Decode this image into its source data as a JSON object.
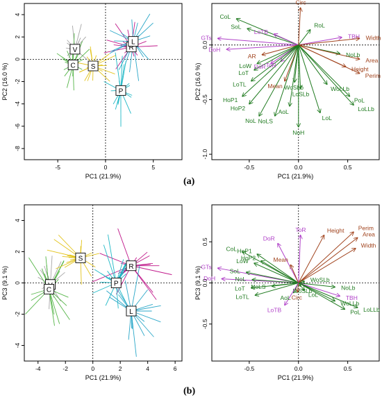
{
  "panel_labels": {
    "a": "(a)",
    "b": "(b)"
  },
  "colors": {
    "V": "#a6a6a6",
    "C": "#55b548",
    "S": "#e3c41c",
    "R": "#c0188a",
    "L": "#2aa7c8",
    "P": "#1fb8c6",
    "shape_arrow": "#1f7a1f",
    "size_arrow": "#a0421c",
    "color_arrow": "#b040c8",
    "shape_label": "#1f7a1f",
    "size_label": "#a0421c",
    "color_label": "#b040c8"
  },
  "chart_data": [
    {
      "type": "scatter",
      "panel": "a-left",
      "xlabel": "PC1 (21.9%)",
      "ylabel": "PC2 (16.0 %)",
      "xlim": [
        -8.5,
        8
      ],
      "ylim": [
        -9,
        5
      ],
      "xticks": [
        -5,
        0,
        5
      ],
      "xtick_labels": [
        "-5",
        "0",
        "5"
      ],
      "yticks": [
        -8,
        -6,
        -4,
        -2,
        0,
        2,
        4
      ],
      "ytick_labels": [
        "-8",
        "-6",
        "-4",
        "-2",
        "0",
        "2",
        "4"
      ],
      "centroids": [
        {
          "label": "V",
          "x": -3.2,
          "y": 0.9
        },
        {
          "label": "C",
          "x": -3.4,
          "y": -0.5
        },
        {
          "label": "S",
          "x": -1.3,
          "y": -0.6
        },
        {
          "label": "R",
          "x": 2.7,
          "y": 1.1
        },
        {
          "label": "L",
          "x": 2.9,
          "y": 1.6
        },
        {
          "label": "P",
          "x": 1.6,
          "y": -2.8
        }
      ]
    },
    {
      "type": "biplot",
      "panel": "a-right",
      "xlabel": "PC1 (21.9%)",
      "ylabel": "PC2 (16.0 %)",
      "xlim": [
        -0.88,
        0.82
      ],
      "ylim": [
        -1.05,
        0.38
      ],
      "xticks": [
        -0.5,
        0,
        0.5
      ],
      "xtick_labels": [
        "-0.5",
        "0.0",
        "0.5"
      ],
      "yticks": [
        -1.0,
        -0.5,
        0.0
      ],
      "ytick_labels": [
        "-1.0",
        "-0.5",
        "0.0"
      ],
      "loadings": [
        {
          "name": "CoL",
          "x": -0.63,
          "y": 0.24,
          "group": "shape"
        },
        {
          "name": "SoL",
          "x": -0.52,
          "y": 0.15,
          "group": "shape"
        },
        {
          "name": "GTs",
          "x": -0.82,
          "y": 0.06,
          "group": "color"
        },
        {
          "name": "DoH",
          "x": -0.73,
          "y": -0.04,
          "group": "color"
        },
        {
          "name": "LoTB",
          "x": -0.25,
          "y": 0.1,
          "group": "color"
        },
        {
          "name": "RoL",
          "x": 0.12,
          "y": 0.14,
          "group": "shape"
        },
        {
          "name": "Circ",
          "x": 0.02,
          "y": 0.34,
          "group": "size"
        },
        {
          "name": "TBH",
          "x": 0.44,
          "y": 0.07,
          "group": "color"
        },
        {
          "name": "Width",
          "x": 0.62,
          "y": 0.06,
          "group": "size"
        },
        {
          "name": "NoLb",
          "x": 0.42,
          "y": -0.08,
          "group": "shape"
        },
        {
          "name": "Area",
          "x": 0.62,
          "y": -0.13,
          "group": "size"
        },
        {
          "name": "Height",
          "x": 0.48,
          "y": -0.2,
          "group": "size"
        },
        {
          "name": "Perim",
          "x": 0.62,
          "y": -0.26,
          "group": "size"
        },
        {
          "name": "AR",
          "x": -0.37,
          "y": -0.09,
          "group": "size"
        },
        {
          "name": "LoW",
          "x": -0.42,
          "y": -0.17,
          "group": "shape"
        },
        {
          "name": "DoR",
          "x": -0.28,
          "y": -0.17,
          "group": "color"
        },
        {
          "name": "ToR",
          "x": -0.18,
          "y": -0.15,
          "group": "color"
        },
        {
          "name": "LoT",
          "x": -0.45,
          "y": -0.23,
          "group": "shape"
        },
        {
          "name": "LoTL",
          "x": -0.48,
          "y": -0.33,
          "group": "shape"
        },
        {
          "name": "Mean",
          "x": -0.14,
          "y": -0.33,
          "group": "size"
        },
        {
          "name": "HoP1",
          "x": -0.57,
          "y": -0.47,
          "group": "shape"
        },
        {
          "name": "HoP2",
          "x": -0.5,
          "y": -0.54,
          "group": "shape"
        },
        {
          "name": "NoL",
          "x": -0.4,
          "y": -0.65,
          "group": "shape"
        },
        {
          "name": "NoLS",
          "x": -0.24,
          "y": -0.65,
          "group": "shape"
        },
        {
          "name": "WoSLb",
          "x": -0.04,
          "y": -0.34,
          "group": "shape"
        },
        {
          "name": "LoSLb",
          "x": 0.02,
          "y": -0.4,
          "group": "shape"
        },
        {
          "name": "WoLLb",
          "x": 0.29,
          "y": -0.36,
          "group": "shape"
        },
        {
          "name": "PoL",
          "x": 0.52,
          "y": -0.47,
          "group": "shape"
        },
        {
          "name": "LoLLb",
          "x": 0.56,
          "y": -0.55,
          "group": "shape"
        },
        {
          "name": "AoL",
          "x": -0.09,
          "y": -0.56,
          "group": "shape"
        },
        {
          "name": "LoL",
          "x": 0.22,
          "y": -0.62,
          "group": "shape"
        },
        {
          "name": "NoH",
          "x": 0.0,
          "y": -0.75,
          "group": "shape"
        }
      ]
    },
    {
      "type": "scatter",
      "panel": "b-left",
      "xlabel": "PC1 (21.9%)",
      "ylabel": "PC3 (9.1 %)",
      "xlim": [
        -5,
        6.5
      ],
      "ylim": [
        -5,
        5
      ],
      "xticks": [
        -4,
        -2,
        0,
        2,
        4,
        6
      ],
      "xtick_labels": [
        "-4",
        "-2",
        "0",
        "2",
        "4",
        "6"
      ],
      "yticks": [
        -4,
        -2,
        0,
        2,
        4
      ],
      "ytick_labels": [
        "-4",
        "-2",
        "0",
        "2",
        "4"
      ],
      "centroids": [
        {
          "label": "V",
          "x": -3.1,
          "y": -0.1
        },
        {
          "label": "C",
          "x": -3.2,
          "y": -0.4
        },
        {
          "label": "S",
          "x": -0.9,
          "y": 1.6
        },
        {
          "label": "R",
          "x": 2.8,
          "y": 1.1
        },
        {
          "label": "P",
          "x": 1.7,
          "y": 0.0
        },
        {
          "label": "L",
          "x": 2.8,
          "y": -1.8
        }
      ]
    },
    {
      "type": "biplot",
      "panel": "b-right",
      "xlabel": "PC1 (21.9%)",
      "ylabel": "PC3 (9.1 %)",
      "xlim": [
        -0.88,
        0.82
      ],
      "ylim": [
        -0.95,
        0.95
      ],
      "xticks": [
        -0.5,
        0,
        0.5
      ],
      "xtick_labels": [
        "-0.5",
        "0.0",
        "0.5"
      ],
      "yticks": [
        -0.5,
        0.0,
        0.5
      ],
      "ytick_labels": [
        "-0.5",
        "0.0",
        "0.5"
      ],
      "loadings": [
        {
          "name": "Height",
          "x": 0.26,
          "y": 0.58,
          "group": "size"
        },
        {
          "name": "Perim",
          "x": 0.56,
          "y": 0.62,
          "group": "size"
        },
        {
          "name": "Area",
          "x": 0.6,
          "y": 0.55,
          "group": "size"
        },
        {
          "name": "Width",
          "x": 0.58,
          "y": 0.42,
          "group": "size"
        },
        {
          "name": "ToR",
          "x": 0.02,
          "y": 0.58,
          "group": "color"
        },
        {
          "name": "DoR",
          "x": -0.21,
          "y": 0.48,
          "group": "color"
        },
        {
          "name": "CoL",
          "x": -0.57,
          "y": 0.38,
          "group": "shape"
        },
        {
          "name": "HoP1",
          "x": -0.42,
          "y": 0.35,
          "group": "shape"
        },
        {
          "name": "LoW",
          "x": -0.45,
          "y": 0.24,
          "group": "shape"
        },
        {
          "name": "HoP2",
          "x": -0.38,
          "y": 0.27,
          "group": "shape"
        },
        {
          "name": "GTs",
          "x": -0.82,
          "y": 0.18,
          "group": "color"
        },
        {
          "name": "SoL",
          "x": -0.53,
          "y": 0.13,
          "group": "shape"
        },
        {
          "name": "Mean",
          "x": -0.08,
          "y": 0.22,
          "group": "size"
        },
        {
          "name": "DoH",
          "x": -0.78,
          "y": 0.05,
          "group": "color"
        },
        {
          "name": "NoL",
          "x": -0.47,
          "y": 0.04,
          "group": "shape"
        },
        {
          "name": "LoT",
          "x": -0.48,
          "y": -0.06,
          "group": "shape"
        },
        {
          "name": "NoLS",
          "x": -0.27,
          "y": -0.04,
          "group": "shape"
        },
        {
          "name": "LoTL",
          "x": -0.44,
          "y": -0.15,
          "group": "shape"
        },
        {
          "name": "WoSLb",
          "x": 0.06,
          "y": 0.02,
          "group": "shape"
        },
        {
          "name": "LoSLb",
          "x": 0.02,
          "y": -0.04,
          "group": "shape"
        },
        {
          "name": "NoLb",
          "x": 0.37,
          "y": -0.05,
          "group": "shape"
        },
        {
          "name": "AoL",
          "x": -0.05,
          "y": -0.12,
          "group": "shape"
        },
        {
          "name": "Circ",
          "x": -0.01,
          "y": -0.11,
          "group": "size"
        },
        {
          "name": "LoL",
          "x": 0.06,
          "y": -0.09,
          "group": "shape"
        },
        {
          "name": "TBH",
          "x": 0.42,
          "y": -0.16,
          "group": "color"
        },
        {
          "name": "WoLLb",
          "x": 0.37,
          "y": -0.22,
          "group": "shape"
        },
        {
          "name": "PoL",
          "x": 0.47,
          "y": -0.32,
          "group": "shape"
        },
        {
          "name": "LoLLb",
          "x": 0.6,
          "y": -0.3,
          "group": "shape"
        },
        {
          "name": "LoTB",
          "x": -0.14,
          "y": -0.27,
          "group": "color"
        },
        {
          "name": "RoL",
          "x": 0.0,
          "y": 0.0,
          "group": "shape"
        }
      ]
    }
  ]
}
